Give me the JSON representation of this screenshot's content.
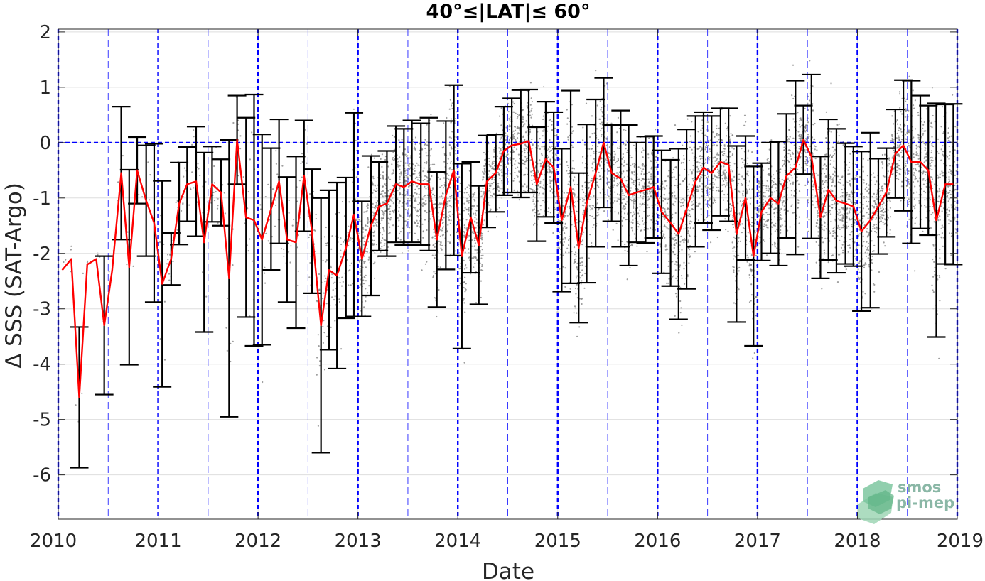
{
  "chart_data": {
    "type": "line",
    "title": "40°≤|LAT|≤ 60°",
    "xlabel": "Date",
    "ylabel": "Δ SSS (SAT-Argo)",
    "xlim": [
      2010.0,
      2019.0
    ],
    "ylim": [
      -6.8,
      2.05
    ],
    "xticks": [
      2010,
      2011,
      2012,
      2013,
      2014,
      2015,
      2016,
      2017,
      2018,
      2019
    ],
    "xtick_labels": [
      "2010",
      "2011",
      "2012",
      "2013",
      "2014",
      "2015",
      "2016",
      "2017",
      "2018",
      "2019"
    ],
    "yticks": [
      -6,
      -5,
      -4,
      -3,
      -2,
      -1,
      0,
      1,
      2
    ],
    "ytick_labels": [
      "-6",
      "-5",
      "-4",
      "-3",
      "-2",
      "-1",
      "0",
      "1",
      "2"
    ],
    "grid": true,
    "reference_lines": {
      "zero_line": 0,
      "year_lines": [
        2010,
        2011,
        2012,
        2013,
        2014,
        2015,
        2016,
        2017,
        2018,
        2019
      ],
      "half_year_lines": [
        2010.5,
        2011.5,
        2012.5,
        2013.5,
        2014.5,
        2015.5,
        2016.5,
        2017.5,
        2018.5
      ]
    },
    "series": [
      {
        "type": "line_with_errorbars",
        "color": "#ff0000",
        "errorbar_color": "#000000",
        "x": [
          2010.04,
          2010.13,
          2010.21,
          2010.29,
          2010.38,
          2010.46,
          2010.54,
          2010.63,
          2010.71,
          2010.79,
          2010.88,
          2010.96,
          2011.04,
          2011.13,
          2011.21,
          2011.29,
          2011.38,
          2011.46,
          2011.54,
          2011.63,
          2011.71,
          2011.79,
          2011.88,
          2011.96,
          2012.04,
          2012.13,
          2012.21,
          2012.29,
          2012.38,
          2012.46,
          2012.54,
          2012.63,
          2012.71,
          2012.79,
          2012.88,
          2012.96,
          2013.04,
          2013.13,
          2013.21,
          2013.29,
          2013.38,
          2013.46,
          2013.54,
          2013.63,
          2013.71,
          2013.79,
          2013.88,
          2013.96,
          2014.04,
          2014.13,
          2014.21,
          2014.29,
          2014.38,
          2014.46,
          2014.54,
          2014.63,
          2014.71,
          2014.79,
          2014.88,
          2014.96,
          2015.04,
          2015.13,
          2015.21,
          2015.29,
          2015.38,
          2015.46,
          2015.54,
          2015.63,
          2015.71,
          2015.79,
          2015.88,
          2015.96,
          2016.04,
          2016.13,
          2016.21,
          2016.29,
          2016.38,
          2016.46,
          2016.54,
          2016.63,
          2016.71,
          2016.79,
          2016.88,
          2016.96,
          2017.04,
          2017.13,
          2017.21,
          2017.29,
          2017.38,
          2017.46,
          2017.54,
          2017.63,
          2017.71,
          2017.79,
          2017.88,
          2017.96,
          2018.04,
          2018.13,
          2018.21,
          2018.29,
          2018.38,
          2018.46,
          2018.54,
          2018.63,
          2018.71,
          2018.79,
          2018.88,
          2018.96
        ],
        "y": [
          -2.3,
          -2.1,
          -4.6,
          -2.2,
          -2.1,
          -3.3,
          -2.3,
          -0.55,
          -2.25,
          -0.5,
          -1.05,
          -1.45,
          -2.55,
          -2.1,
          -1.1,
          -0.75,
          -0.7,
          -1.8,
          -0.75,
          -0.9,
          -2.45,
          0.05,
          -1.35,
          -1.4,
          -1.75,
          -1.2,
          -0.7,
          -1.75,
          -1.8,
          -0.6,
          -1.6,
          -3.3,
          -2.3,
          -2.4,
          -1.9,
          -1.3,
          -2.1,
          -1.5,
          -1.15,
          -1.1,
          -0.75,
          -0.8,
          -0.7,
          -0.75,
          -0.75,
          -1.75,
          -0.95,
          -0.5,
          -2.05,
          -1.35,
          -1.85,
          -0.7,
          -0.55,
          -0.15,
          -0.05,
          -0.02,
          0.03,
          -0.75,
          -0.3,
          -0.45,
          -1.4,
          -0.8,
          -1.9,
          -1.1,
          -0.55,
          0.0,
          -0.55,
          -0.65,
          -0.95,
          -0.9,
          -0.85,
          -0.8,
          -1.25,
          -1.45,
          -1.65,
          -1.2,
          -0.7,
          -0.45,
          -0.55,
          -0.35,
          -0.4,
          -1.65,
          -1.0,
          -2.05,
          -1.25,
          -1.0,
          -1.1,
          -0.6,
          -0.45,
          0.05,
          -0.25,
          -1.35,
          -0.85,
          -1.05,
          -1.1,
          -1.15,
          -1.6,
          -1.4,
          -1.15,
          -0.9,
          -0.2,
          -0.05,
          -0.35,
          -0.35,
          -0.5,
          -1.4,
          -0.75,
          -0.75
        ],
        "yerr": [
          0.0,
          0.0,
          1.27,
          0.0,
          0.0,
          1.25,
          0.0,
          1.2,
          1.76,
          0.6,
          1.0,
          1.43,
          1.86,
          0.47,
          0.74,
          0.67,
          0.99,
          1.62,
          0.68,
          0.6,
          2.5,
          0.8,
          1.8,
          2.27,
          1.9,
          1.1,
          1.12,
          1.13,
          1.55,
          1.0,
          1.12,
          2.3,
          1.44,
          1.68,
          1.27,
          1.84,
          1.04,
          1.26,
          0.8,
          0.95,
          1.05,
          1.05,
          1.1,
          1.1,
          1.2,
          1.22,
          1.34,
          1.54,
          1.67,
          1.0,
          1.07,
          0.83,
          0.7,
          0.8,
          0.85,
          0.97,
          0.93,
          1.03,
          1.04,
          1.0,
          1.29,
          1.74,
          1.35,
          1.43,
          1.33,
          1.17,
          0.87,
          1.23,
          1.27,
          0.9,
          0.96,
          0.92,
          1.11,
          1.14,
          1.54,
          1.44,
          1.18,
          1.0,
          1.03,
          0.97,
          1.02,
          1.59,
          1.12,
          1.62,
          0.88,
          1.0,
          1.12,
          1.12,
          1.57,
          0.62,
          1.48,
          1.1,
          1.27,
          1.3,
          1.09,
          1.08,
          1.44,
          1.58,
          0.86,
          0.8,
          0.8,
          1.18,
          1.47,
          1.2,
          1.17,
          2.11,
          1.44,
          1.45
        ]
      },
      {
        "type": "scatter",
        "color": "#808080",
        "note": "individual match-up differences (grey dots), density increases after 2013"
      }
    ]
  },
  "logo": {
    "line1": "smos",
    "line2": "pi-mep",
    "color": "#4aa87a"
  }
}
